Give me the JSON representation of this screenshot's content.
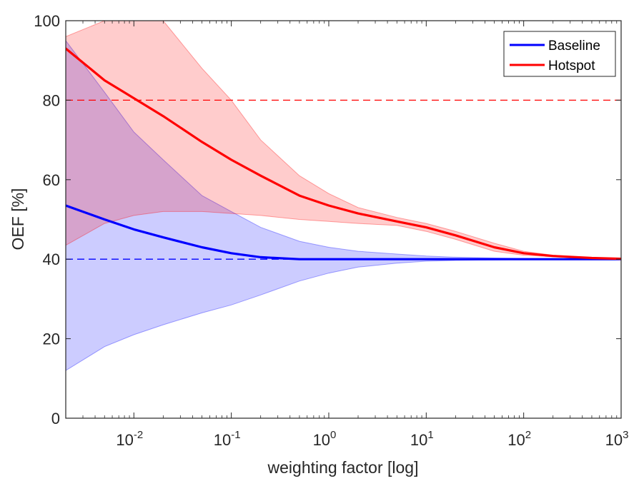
{
  "chart_data": {
    "type": "line",
    "title": "",
    "xlabel": "weighting factor [log]",
    "ylabel": "OEF [%]",
    "xscale": "log",
    "xlim": [
      0.002,
      1000
    ],
    "ylim": [
      0,
      100
    ],
    "xticks": [
      {
        "exp": -2,
        "base": "10",
        "sup": "-2"
      },
      {
        "exp": -1,
        "base": "10",
        "sup": "-1"
      },
      {
        "exp": 0,
        "base": "10",
        "sup": "0"
      },
      {
        "exp": 1,
        "base": "10",
        "sup": "1"
      },
      {
        "exp": 2,
        "base": "10",
        "sup": "2"
      },
      {
        "exp": 3,
        "base": "10",
        "sup": "3"
      }
    ],
    "yticks": [
      "0",
      "20",
      "40",
      "60",
      "80",
      "100"
    ],
    "legend_position": "top-right",
    "colors": {
      "baseline": "#0000ff",
      "hotspot": "#ff0000",
      "baseline_fill": "#c8c8f8",
      "hotspot_fill": "#ffc8c8"
    },
    "reference_lines": [
      {
        "series": "Hotspot",
        "y": 80,
        "style": "dashed"
      },
      {
        "series": "Baseline",
        "y": 40,
        "style": "dashed"
      }
    ],
    "series": [
      {
        "name": "Baseline",
        "color": "#0000ff",
        "x": [
          0.002,
          0.005,
          0.01,
          0.02,
          0.05,
          0.1,
          0.2,
          0.5,
          1,
          2,
          5,
          10,
          20,
          50,
          100,
          200,
          500,
          1000
        ],
        "y": [
          53.5,
          50,
          47.5,
          45.5,
          43,
          41.5,
          40.5,
          40,
          40,
          40,
          40,
          40,
          40,
          40,
          40,
          40,
          40,
          40
        ],
        "upper": [
          95,
          82,
          72,
          65,
          56,
          52,
          48,
          44.5,
          43,
          42,
          41.3,
          40.8,
          40.5,
          40.3,
          40.2,
          40.1,
          40,
          40
        ],
        "lower": [
          12,
          18,
          21,
          23.5,
          26.5,
          28.5,
          31,
          34.5,
          36.5,
          38,
          39,
          39.5,
          39.7,
          39.8,
          39.9,
          40,
          40,
          40
        ]
      },
      {
        "name": "Hotspot",
        "color": "#ff0000",
        "x": [
          0.002,
          0.005,
          0.01,
          0.02,
          0.05,
          0.1,
          0.2,
          0.5,
          1,
          2,
          5,
          10,
          20,
          50,
          100,
          200,
          500,
          1000
        ],
        "y": [
          93,
          85,
          80.5,
          76,
          69.5,
          65,
          61,
          56,
          53.5,
          51.5,
          49.5,
          48,
          46,
          43,
          41.5,
          40.8,
          40.3,
          40.1
        ],
        "upper": [
          96,
          100,
          100,
          100,
          88,
          80,
          70,
          61,
          56.5,
          53,
          50.5,
          49,
          47,
          44,
          42,
          41,
          40.4,
          40.2
        ],
        "lower": [
          43.5,
          49,
          51,
          52,
          52,
          51.5,
          51,
          50,
          49.5,
          49,
          48.5,
          47,
          45,
          42,
          41,
          40.6,
          40.2,
          40
        ]
      }
    ]
  }
}
